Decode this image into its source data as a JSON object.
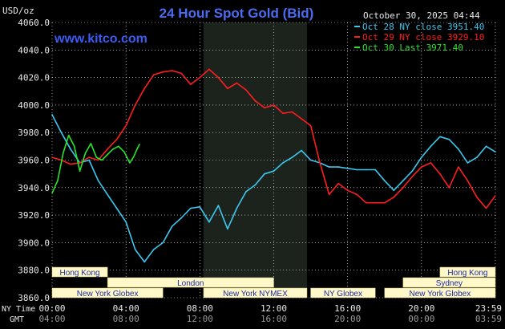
{
  "header": {
    "title": "24 Hour Spot Gold (Bid)",
    "unit_label": "USD/oz",
    "datetime": "October 30, 2025 04:44",
    "site": "www.kitco.com"
  },
  "colors": {
    "background": "#000000",
    "grid": "#ffffff",
    "session_shade": "#1c221c",
    "series_oct28": "#3cc8f0",
    "series_oct29": "#ff1e1e",
    "series_oct30": "#28e628",
    "title": "#4a6cf0",
    "session_bar_fill": "#fff8c8",
    "session_bar_text": "#1a2aa0"
  },
  "footer": {
    "ny_time_label": "NY Time",
    "gmt_label": "GMT"
  },
  "sessions": {
    "row1": [
      {
        "label": "Hong Kong",
        "start": 0,
        "end": 3
      },
      {
        "label": "Hong Kong",
        "start": 21,
        "end": 24
      }
    ],
    "row2": [
      {
        "label": "London",
        "start": 3,
        "end": 12
      },
      {
        "label": "Sydney",
        "start": 19,
        "end": 24
      }
    ],
    "row3": [
      {
        "label": "New York Globex",
        "start": 0,
        "end": 6
      },
      {
        "label": "New York NYMEX",
        "start": 8.2,
        "end": 13.8
      },
      {
        "label": "NY Globex",
        "start": 14,
        "end": 17.5
      },
      {
        "label": "New York Globex",
        "start": 18,
        "end": 24
      }
    ]
  },
  "chart_data": {
    "type": "line",
    "title": "24 Hour Spot Gold (Bid)",
    "ylabel": "USD/oz",
    "ylim": [
      3860,
      4060
    ],
    "y_ticks": [
      "3860.0",
      "3880.0",
      "3900.0",
      "3920.0",
      "3940.0",
      "3960.0",
      "3980.0",
      "4000.0",
      "4020.0",
      "4040.0",
      "4060.0"
    ],
    "x_ticks_ny": [
      "00:00",
      "04:00",
      "08:00",
      "12:00",
      "16:00",
      "20:00",
      "23:59"
    ],
    "x_ticks_gmt": [
      "04:00",
      "08:00",
      "12:00",
      "16:00",
      "20:00",
      "00:00",
      "03:59"
    ],
    "legend_position": "top-right",
    "series": [
      {
        "name": "Oct 28 NY close 3951.40",
        "hours": [
          0,
          0.5,
          1,
          1.5,
          2,
          2.5,
          3,
          3.5,
          4,
          4.5,
          5,
          5.5,
          6,
          6.5,
          7,
          7.5,
          8,
          8.5,
          9,
          9.5,
          10,
          10.5,
          11,
          11.5,
          12,
          12.5,
          13,
          13.5,
          14,
          14.5,
          15,
          15.5,
          16,
          16.5,
          17,
          17.5,
          18,
          18.5,
          19,
          19.5,
          20,
          20.5,
          21,
          21.5,
          22,
          22.5,
          23,
          23.5,
          23.99
        ],
        "values": [
          3993,
          3980,
          3968,
          3958,
          3960,
          3945,
          3935,
          3925,
          3915,
          3895,
          3886,
          3895,
          3900,
          3912,
          3918,
          3925,
          3926,
          3915,
          3927,
          3910,
          3925,
          3937,
          3942,
          3950,
          3952,
          3958,
          3962,
          3967,
          3960,
          3958,
          3955,
          3955,
          3954,
          3953,
          3953,
          3953,
          3945,
          3938,
          3945,
          3952,
          3962,
          3970,
          3977,
          3975,
          3968,
          3958,
          3962,
          3970,
          3966
        ]
      },
      {
        "name": "Oct 29 NY close 3929.10",
        "hours": [
          0,
          0.5,
          1,
          1.5,
          2,
          2.5,
          3,
          3.5,
          4,
          4.5,
          5,
          5.5,
          6,
          6.5,
          7,
          7.5,
          8,
          8.5,
          9,
          9.5,
          10,
          10.5,
          11,
          11.5,
          12,
          12.5,
          13,
          13.5,
          14,
          14.5,
          15,
          15.5,
          16,
          16.5,
          17,
          17.5,
          18,
          18.5,
          19,
          19.5,
          20,
          20.5,
          21,
          21.5,
          22,
          22.5,
          23,
          23.5,
          23.99
        ],
        "values": [
          3962,
          3960,
          3957,
          3958,
          3962,
          3960,
          3968,
          3975,
          3985,
          4000,
          4012,
          4022,
          4024,
          4025,
          4023,
          4015,
          4020,
          4026,
          4020,
          4012,
          4016,
          4011,
          4003,
          3998,
          4000,
          3994,
          3995,
          3990,
          3985,
          3958,
          3935,
          3943,
          3938,
          3935,
          3929,
          3929,
          3929,
          3933,
          3940,
          3948,
          3955,
          3958,
          3950,
          3940,
          3955,
          3945,
          3933,
          3925,
          3934
        ]
      },
      {
        "name": "Oct 30 Last 3971.40",
        "hours": [
          0,
          0.3,
          0.6,
          0.9,
          1.2,
          1.5,
          1.8,
          2.1,
          2.4,
          2.7,
          3,
          3.3,
          3.6,
          3.9,
          4.2,
          4.4,
          4.6,
          4.73
        ],
        "values": [
          3936,
          3945,
          3965,
          3978,
          3970,
          3952,
          3965,
          3972,
          3962,
          3960,
          3964,
          3968,
          3970,
          3966,
          3958,
          3962,
          3968,
          3971.4
        ]
      }
    ]
  }
}
